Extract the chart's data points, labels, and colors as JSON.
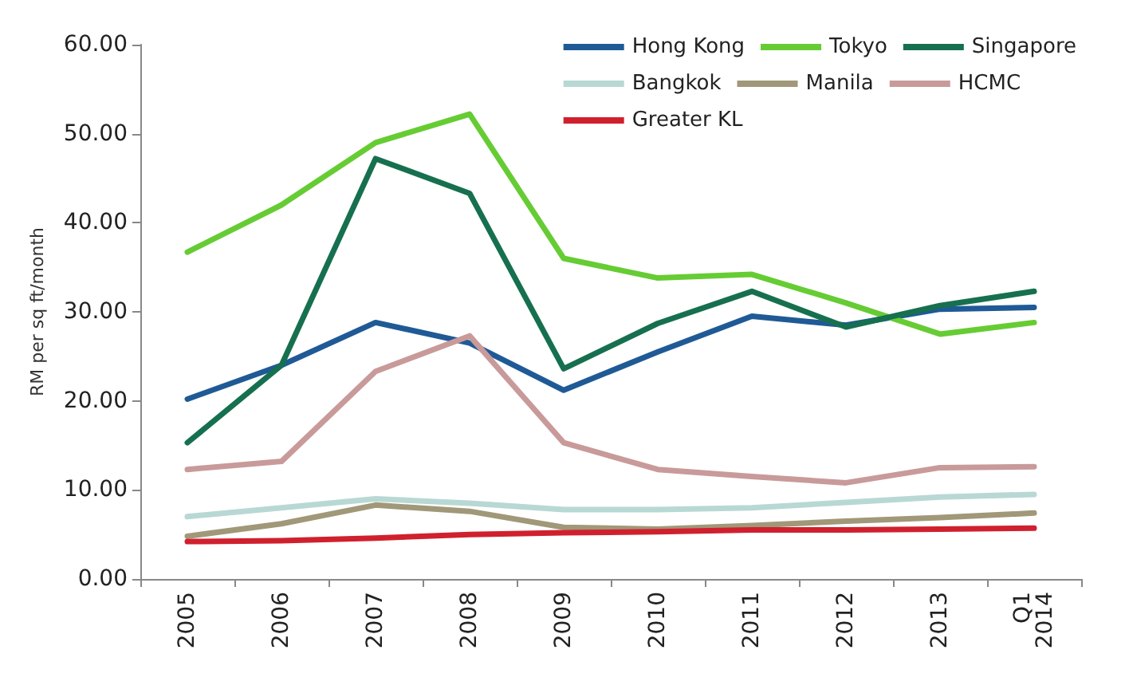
{
  "chart_data": {
    "type": "line",
    "ylabel": "RM per sq ft/month",
    "categories": [
      "2005",
      "2006",
      "2007",
      "2008",
      "2009",
      "2010",
      "2011",
      "2012",
      "2013",
      "Q1 2014"
    ],
    "ylim": [
      0,
      60
    ],
    "yticks": [
      {
        "value": 0,
        "label": "0.00"
      },
      {
        "value": 10,
        "label": "10.00"
      },
      {
        "value": 20,
        "label": "20.00"
      },
      {
        "value": 30,
        "label": "30.00"
      },
      {
        "value": 40,
        "label": "40.00"
      },
      {
        "value": 50,
        "label": "50.00"
      },
      {
        "value": 60,
        "label": "60.00"
      }
    ],
    "grid": false,
    "legend": "top right",
    "marker": "none",
    "line_style": "solid",
    "series": [
      {
        "name": "Hong Kong",
        "color": "#1f5a96",
        "values": [
          20.2,
          24,
          28.8,
          26.5,
          21.2,
          25.5,
          29.5,
          28.5,
          30.3,
          30.5
        ]
      },
      {
        "name": "Tokyo",
        "color": "#66cc33",
        "values": [
          36.7,
          42,
          49,
          52.2,
          36,
          33.8,
          34.2,
          31,
          27.5,
          28.8
        ]
      },
      {
        "name": "Singapore",
        "color": "#16704f",
        "values": [
          15.3,
          24,
          47.2,
          43.3,
          23.6,
          28.7,
          32.3,
          28.3,
          30.7,
          32.3
        ]
      },
      {
        "name": "Bangkok",
        "color": "#b8d8d4",
        "values": [
          7,
          8,
          9,
          8.5,
          7.8,
          7.8,
          8,
          8.6,
          9.2,
          9.5
        ]
      },
      {
        "name": "Manila",
        "color": "#a09878",
        "values": [
          4.8,
          6.2,
          8.3,
          7.6,
          5.8,
          5.6,
          6,
          6.5,
          6.9,
          7.4
        ]
      },
      {
        "name": "HCMC",
        "color": "#c99a9a",
        "values": [
          12.3,
          13.2,
          23.3,
          27.3,
          15.3,
          12.3,
          11.5,
          10.8,
          12.5,
          12.6
        ]
      },
      {
        "name": "Greater KL",
        "color": "#d0202e",
        "values": [
          4.2,
          4.3,
          4.6,
          5,
          5.2,
          5.3,
          5.5,
          5.5,
          5.6,
          5.7
        ]
      }
    ]
  }
}
